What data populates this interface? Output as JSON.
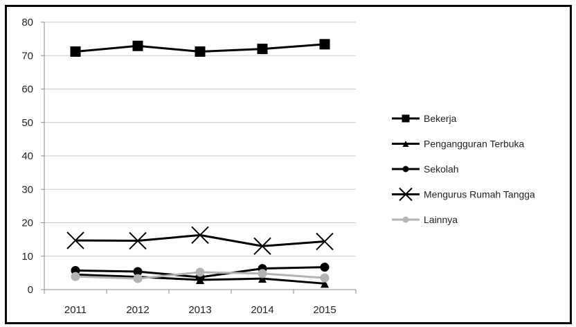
{
  "chart_data": {
    "type": "line",
    "title": "",
    "xlabel": "",
    "ylabel": "",
    "categories": [
      "2011",
      "2012",
      "2013",
      "2014",
      "2015"
    ],
    "ylim": [
      0,
      80
    ],
    "yticks": [
      0,
      10,
      20,
      30,
      40,
      50,
      60,
      70,
      80
    ],
    "grid": "horizontal",
    "legend_position": "right",
    "series": [
      {
        "name": "Bekerja",
        "values": [
          71.2,
          72.9,
          71.2,
          72.0,
          73.4
        ],
        "color": "#000000",
        "marker": "square"
      },
      {
        "name": "Pengangguran Terbuka",
        "values": [
          4.5,
          3.8,
          2.9,
          3.3,
          1.8
        ],
        "color": "#000000",
        "marker": "triangle"
      },
      {
        "name": "Sekolah",
        "values": [
          5.7,
          5.4,
          3.7,
          6.3,
          6.7
        ],
        "color": "#000000",
        "marker": "circle"
      },
      {
        "name": "Mengurus Rumah Tangga",
        "values": [
          14.7,
          14.6,
          16.3,
          13.0,
          14.4
        ],
        "color": "#000000",
        "marker": "x"
      },
      {
        "name": "Lainnya",
        "values": [
          3.9,
          3.3,
          5.2,
          4.8,
          3.5
        ],
        "color": "#b3b3b3",
        "marker": "circle"
      }
    ]
  }
}
